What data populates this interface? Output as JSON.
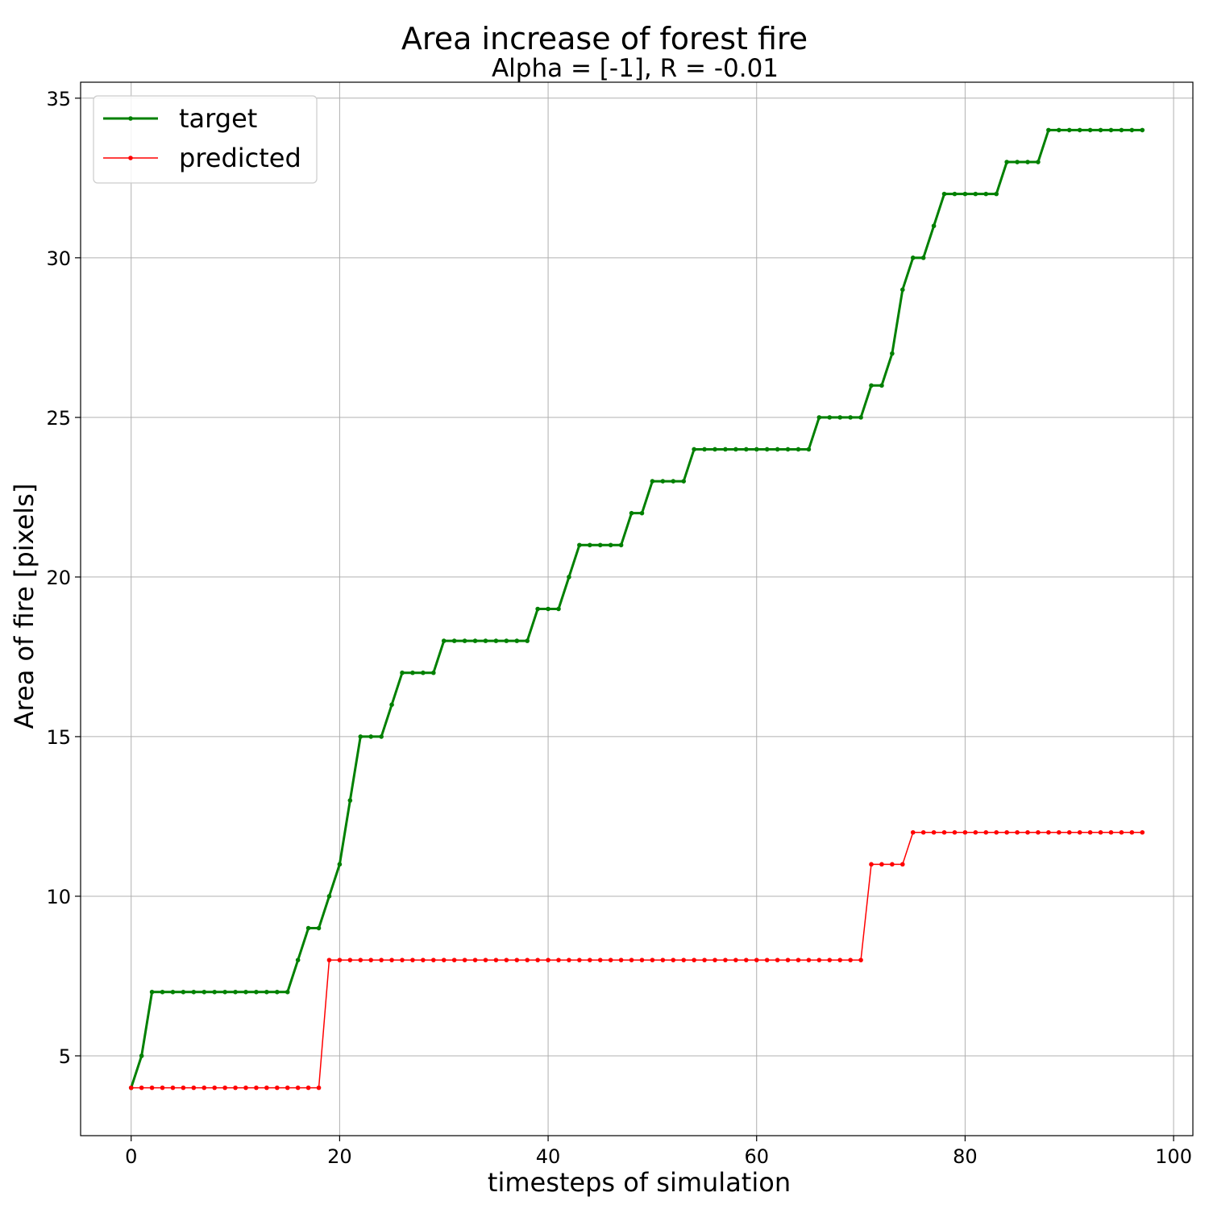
{
  "chart_data": {
    "type": "line",
    "title": "Area increase of forest fire",
    "subtitle": "Alpha = [-1], R = -0.01",
    "xlabel": "timesteps of simulation",
    "ylabel": "Area of fire [pixels]",
    "xlim": [
      -4.85,
      101.85
    ],
    "ylim": [
      2.5,
      35.5
    ],
    "xticks": [
      0,
      20,
      40,
      60,
      80,
      100
    ],
    "yticks": [
      5,
      10,
      15,
      20,
      25,
      30,
      35
    ],
    "grid": true,
    "legend": "top-left",
    "series": [
      {
        "name": "target",
        "color": "#008000",
        "x_start": 0,
        "values": [
          4,
          5,
          7,
          7,
          7,
          7,
          7,
          7,
          7,
          7,
          7,
          7,
          7,
          7,
          7,
          7,
          8,
          9,
          9,
          10,
          11,
          13,
          15,
          15,
          15,
          16,
          17,
          17,
          17,
          17,
          18,
          18,
          18,
          18,
          18,
          18,
          18,
          18,
          18,
          19,
          19,
          19,
          20,
          21,
          21,
          21,
          21,
          21,
          22,
          22,
          23,
          23,
          23,
          23,
          24,
          24,
          24,
          24,
          24,
          24,
          24,
          24,
          24,
          24,
          24,
          24,
          25,
          25,
          25,
          25,
          25,
          26,
          26,
          27,
          29,
          30,
          30,
          31,
          32,
          32,
          32,
          32,
          32,
          32,
          33,
          33,
          33,
          33,
          34,
          34,
          34,
          34,
          34,
          34,
          34,
          34,
          34,
          34
        ]
      },
      {
        "name": "predicted",
        "color": "#ff0000",
        "x_start": 0,
        "values": [
          4,
          4,
          4,
          4,
          4,
          4,
          4,
          4,
          4,
          4,
          4,
          4,
          4,
          4,
          4,
          4,
          4,
          4,
          4,
          8,
          8,
          8,
          8,
          8,
          8,
          8,
          8,
          8,
          8,
          8,
          8,
          8,
          8,
          8,
          8,
          8,
          8,
          8,
          8,
          8,
          8,
          8,
          8,
          8,
          8,
          8,
          8,
          8,
          8,
          8,
          8,
          8,
          8,
          8,
          8,
          8,
          8,
          8,
          8,
          8,
          8,
          8,
          8,
          8,
          8,
          8,
          8,
          8,
          8,
          8,
          8,
          11,
          11,
          11,
          11,
          12,
          12,
          12,
          12,
          12,
          12,
          12,
          12,
          12,
          12,
          12,
          12,
          12,
          12,
          12,
          12,
          12,
          12,
          12,
          12,
          12,
          12,
          12
        ]
      }
    ]
  }
}
